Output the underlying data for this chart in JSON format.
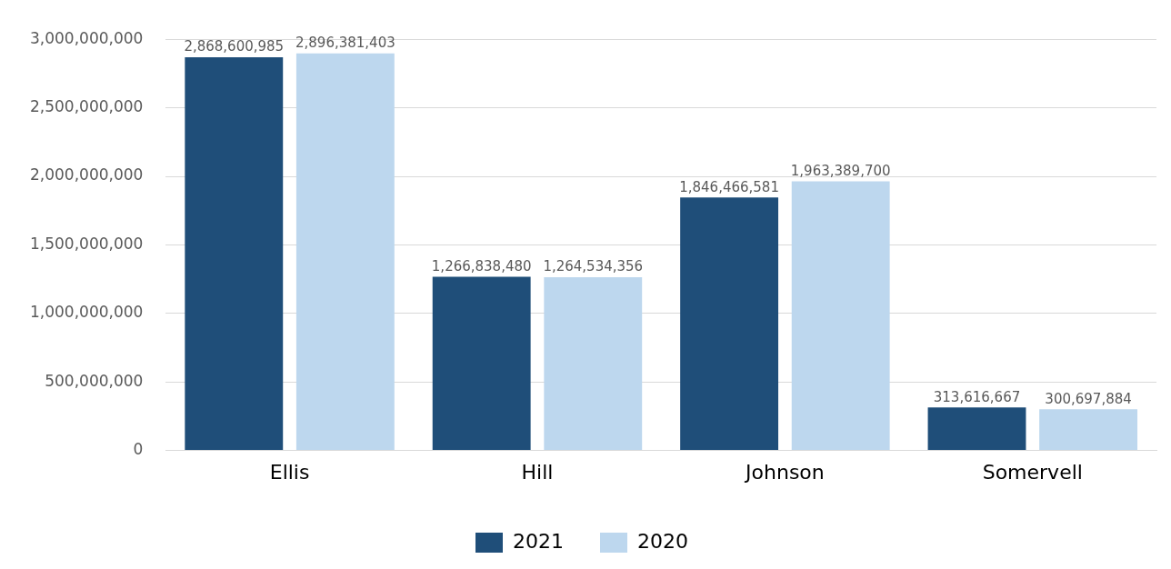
{
  "chart_data": {
    "type": "bar",
    "categories": [
      "Ellis",
      "Hill",
      "Johnson",
      "Somervell"
    ],
    "series": [
      {
        "name": "2021",
        "color": "#1f4e79",
        "values": [
          2868600985,
          1266838480,
          1846466581,
          313616667
        ],
        "value_labels": [
          "2,868,600,985",
          "1,266,838,480",
          "1,846,466,581",
          "313,616,667"
        ]
      },
      {
        "name": "2020",
        "color": "#bdd7ee",
        "values": [
          2896381403,
          1264534356,
          1963389700,
          300697884
        ],
        "value_labels": [
          "2,896,381,403",
          "1,264,534,356",
          "1,963,389,700",
          "300,697,884"
        ]
      }
    ],
    "ylim": [
      0,
      3000000000
    ],
    "yticks": [
      0,
      {
        "value": 500000000,
        "label": "500,000,000"
      },
      {
        "value": 1000000000,
        "label": "1,000,000,000"
      },
      {
        "value": 1500000000,
        "label": "1,500,000,000"
      },
      {
        "value": 2000000000,
        "label": "2,000,000,000"
      },
      {
        "value": 2500000000,
        "label": "2,500,000,000"
      },
      {
        "value": 3000000000,
        "label": "3,000,000,000"
      }
    ],
    "grid": "y",
    "legend": "bottom"
  }
}
